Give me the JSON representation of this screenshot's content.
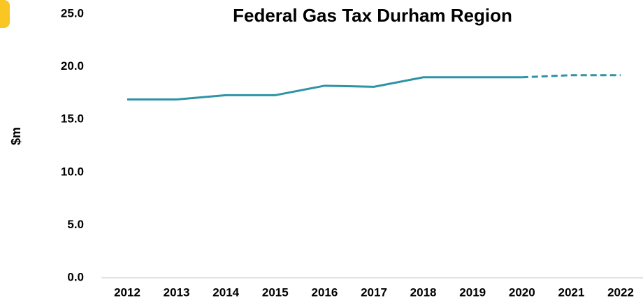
{
  "chart_data": {
    "type": "line",
    "title": "Federal Gas Tax Durham Region",
    "y_label": "$m",
    "categories": [
      "2012",
      "2013",
      "2014",
      "2015",
      "2016",
      "2017",
      "2018",
      "2019",
      "2020",
      "2021",
      "2022"
    ],
    "series": [
      {
        "color": "#2e93a5",
        "dashed": false,
        "values": [
          16.9,
          16.9,
          17.3,
          17.3,
          18.2,
          18.1,
          19.0,
          19.0,
          19.0,
          null,
          null
        ]
      },
      {
        "color": "#2e93a5",
        "dashed": true,
        "values": [
          null,
          null,
          null,
          null,
          null,
          null,
          null,
          null,
          19.0,
          19.2,
          19.2
        ]
      }
    ],
    "ylim": [
      0,
      25
    ],
    "yticks": [
      {
        "value": 0,
        "label": "0.0"
      },
      {
        "value": 5,
        "label": "5.0"
      },
      {
        "value": 10,
        "label": "10.0"
      },
      {
        "value": 15,
        "label": "15.0"
      },
      {
        "value": 20,
        "label": "20.0"
      },
      {
        "value": 25,
        "label": "25.0"
      }
    ],
    "grid": false
  }
}
